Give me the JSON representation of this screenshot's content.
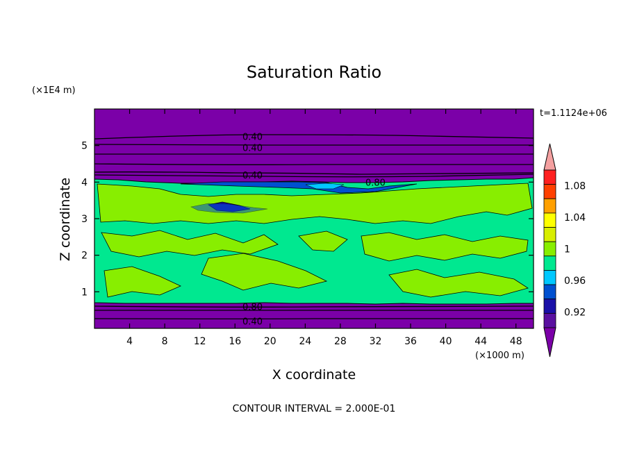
{
  "chart_data": {
    "type": "heatmap",
    "title": "Saturation Ratio",
    "xlabel": "X coordinate",
    "ylabel": "Z coordinate",
    "x_unit_label": "(×1000 m)",
    "y_unit_label": "(×1E4 m)",
    "time_label": "t=1.1124e+06",
    "contour_interval_label": "CONTOUR INTERVAL = 2.000E-01",
    "xlim": [
      0,
      50
    ],
    "ylim": [
      0,
      6
    ],
    "x_ticks": [
      4,
      8,
      12,
      16,
      20,
      24,
      28,
      32,
      36,
      40,
      44,
      48
    ],
    "y_ticks": [
      1,
      2,
      3,
      4,
      5
    ],
    "contour_lines": [
      {
        "label": "0.40",
        "x": 18,
        "z": 5.25
      },
      {
        "label": "0.40",
        "x": 18,
        "z": 4.95
      },
      {
        "label": "0.40",
        "x": 18,
        "z": 4.2
      },
      {
        "label": "0.80",
        "x": 32,
        "z": 4.0
      },
      {
        "label": "0.80",
        "x": 18,
        "z": 0.6
      },
      {
        "label": "0.40",
        "x": 18,
        "z": 0.2
      }
    ],
    "colorbar": {
      "levels": [
        0.9,
        0.92,
        0.94,
        0.96,
        0.98,
        1.0,
        1.02,
        1.04,
        1.06,
        1.08,
        1.1
      ],
      "tick_labels": [
        "0.92",
        "0.96",
        "1",
        "1.04",
        "1.08"
      ],
      "colors": [
        "#5a10a0",
        "#1a10a8",
        "#0050d0",
        "#00c8ff",
        "#00e890",
        "#88ee00",
        "#d8ee00",
        "#ffff00",
        "#ffa000",
        "#ff4000",
        "#ff2020"
      ],
      "under_color": "#7b00a8",
      "over_color": "#f4a0a0"
    },
    "regions": [
      {
        "z_range": [
          4.2,
          6.0
        ],
        "value": "below 0.9"
      },
      {
        "z_range": [
          0.7,
          4.0
        ],
        "value": "about 0.98 to 1.02"
      },
      {
        "z_range": [
          0.0,
          0.6
        ],
        "value": "below 0.9"
      }
    ]
  }
}
